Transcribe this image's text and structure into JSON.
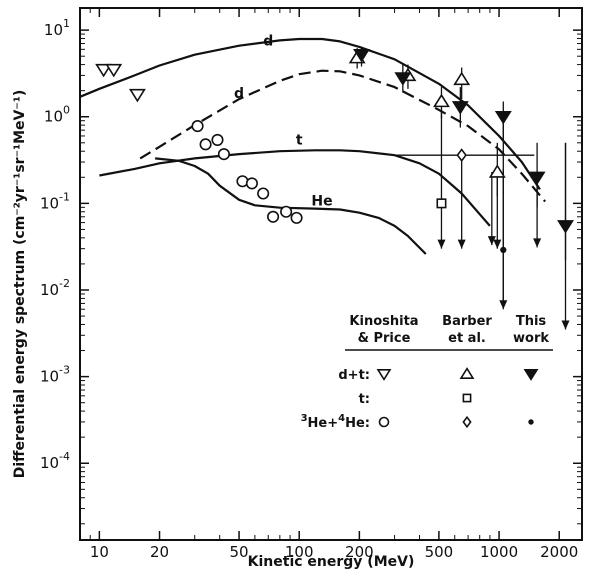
{
  "chart_data": {
    "type": "scatter",
    "title": "",
    "xlabel": "Kinetic energy (MeV)",
    "ylabel": "Differential energy spectrum (cm⁻²yr⁻¹sr⁻¹MeV⁻¹)",
    "xscale": "log",
    "yscale": "log",
    "xlim": [
      8,
      2600
    ],
    "ylim": [
      1.3e-05,
      18
    ],
    "x_ticks": [
      {
        "value": 10,
        "label": "10"
      },
      {
        "value": 20,
        "label": "20"
      },
      {
        "value": 50,
        "label": "50"
      },
      {
        "value": 100,
        "label": "100"
      },
      {
        "value": 200,
        "label": "200"
      },
      {
        "value": 500,
        "label": "500"
      },
      {
        "value": 1000,
        "label": "1000"
      },
      {
        "value": 2000,
        "label": "2000"
      }
    ],
    "y_ticks": [
      {
        "value": 10,
        "base": "10",
        "exp": "1"
      },
      {
        "value": 1,
        "base": "10",
        "exp": "0"
      },
      {
        "value": 0.1,
        "base": "10",
        "exp": "-1"
      },
      {
        "value": 0.01,
        "base": "10",
        "exp": "-2"
      },
      {
        "value": 0.001,
        "base": "10",
        "exp": "-3"
      },
      {
        "value": 0.0001,
        "base": "10",
        "exp": "-4"
      }
    ],
    "curves": [
      {
        "label": "d",
        "style": "solid",
        "label_at": [
          70,
          6.6
        ],
        "points": [
          [
            8,
            1.7
          ],
          [
            10,
            2.1
          ],
          [
            15,
            3.0
          ],
          [
            20,
            3.9
          ],
          [
            30,
            5.2
          ],
          [
            50,
            6.6
          ],
          [
            80,
            7.6
          ],
          [
            100,
            7.9
          ],
          [
            130,
            7.9
          ],
          [
            160,
            7.4
          ],
          [
            200,
            6.4
          ],
          [
            300,
            4.6
          ],
          [
            500,
            2.4
          ],
          [
            700,
            1.35
          ],
          [
            1000,
            0.6
          ],
          [
            1300,
            0.3
          ],
          [
            1600,
            0.145
          ]
        ]
      },
      {
        "label": "d",
        "style": "dashed",
        "label_at": [
          50,
          1.65
        ],
        "points": [
          [
            16,
            0.33
          ],
          [
            20,
            0.45
          ],
          [
            30,
            0.8
          ],
          [
            50,
            1.6
          ],
          [
            80,
            2.6
          ],
          [
            100,
            3.1
          ],
          [
            130,
            3.4
          ],
          [
            160,
            3.35
          ],
          [
            200,
            3.0
          ],
          [
            300,
            2.2
          ],
          [
            500,
            1.2
          ],
          [
            700,
            0.78
          ],
          [
            1000,
            0.42
          ],
          [
            1300,
            0.22
          ],
          [
            1700,
            0.105
          ]
        ]
      },
      {
        "label": "t",
        "style": "solid",
        "label_at": [
          100,
          0.48
        ],
        "points": [
          [
            10,
            0.21
          ],
          [
            15,
            0.25
          ],
          [
            20,
            0.29
          ],
          [
            30,
            0.33
          ],
          [
            50,
            0.37
          ],
          [
            80,
            0.4
          ],
          [
            120,
            0.41
          ],
          [
            160,
            0.41
          ],
          [
            200,
            0.4
          ],
          [
            300,
            0.36
          ],
          [
            400,
            0.29
          ],
          [
            500,
            0.22
          ],
          [
            650,
            0.13
          ],
          [
            800,
            0.075
          ],
          [
            900,
            0.055
          ]
        ]
      },
      {
        "label": "He",
        "style": "solid",
        "label_at": [
          130,
          0.095
        ],
        "points": [
          [
            19,
            0.33
          ],
          [
            25,
            0.31
          ],
          [
            30,
            0.27
          ],
          [
            35,
            0.22
          ],
          [
            40,
            0.16
          ],
          [
            50,
            0.11
          ],
          [
            60,
            0.095
          ],
          [
            80,
            0.089
          ],
          [
            120,
            0.087
          ],
          [
            160,
            0.085
          ],
          [
            200,
            0.078
          ],
          [
            250,
            0.068
          ],
          [
            300,
            0.055
          ],
          [
            350,
            0.042
          ],
          [
            430,
            0.026
          ]
        ]
      }
    ],
    "series": [
      {
        "group": "d+t",
        "source": "Kinoshita & Price",
        "marker": "triangle-down-open",
        "points": [
          {
            "x": 10.5,
            "y": 3.5
          },
          {
            "x": 11.8,
            "y": 3.5
          },
          {
            "x": 15.5,
            "y": 1.8
          }
        ]
      },
      {
        "group": "d+t",
        "source": "Barber et al.",
        "marker": "triangle-up-open",
        "points": [
          {
            "x": 195,
            "y": 4.8,
            "yerr": [
              3.6,
              6.2
            ]
          },
          {
            "x": 350,
            "y": 3.0,
            "yerr": [
              2.1,
              4.0
            ]
          },
          {
            "x": 515,
            "y": 1.5,
            "yerr": [
              0.95,
              2.2
            ]
          },
          {
            "x": 650,
            "y": 2.7,
            "yerr": [
              1.6,
              3.7
            ]
          },
          {
            "x": 980,
            "y": 0.23,
            "yerr": [
              0.12,
              0.5
            ]
          }
        ]
      },
      {
        "group": "d+t",
        "source": "This work",
        "marker": "triangle-down-filled",
        "points": [
          {
            "x": 205,
            "y": 5.2,
            "yerr": [
              3.8,
              6.4
            ]
          },
          {
            "x": 330,
            "y": 2.8,
            "yerr": [
              1.9,
              4.0
            ]
          },
          {
            "x": 640,
            "y": 1.3,
            "yerr": [
              0.75,
              2.2
            ]
          },
          {
            "x": 1050,
            "y": 1.0,
            "yerr": [
              0.55,
              1.5
            ]
          },
          {
            "x": 1550,
            "y": 0.2,
            "yerr": [
              0.09,
              0.5
            ]
          },
          {
            "x": 2150,
            "y": 0.055,
            "yerr": [
              0.022,
              0.5
            ]
          }
        ]
      },
      {
        "group": "t",
        "source": "Barber et al.",
        "marker": "square-open",
        "points": [
          {
            "x": 515,
            "y": 0.1
          }
        ]
      },
      {
        "group": "3He+4He",
        "source": "Kinoshita & Price",
        "marker": "circle-open",
        "points": [
          {
            "x": 31,
            "y": 0.78
          },
          {
            "x": 34,
            "y": 0.48
          },
          {
            "x": 39,
            "y": 0.54
          },
          {
            "x": 42,
            "y": 0.37
          },
          {
            "x": 52,
            "y": 0.18
          },
          {
            "x": 58,
            "y": 0.17
          },
          {
            "x": 66,
            "y": 0.13
          },
          {
            "x": 74,
            "y": 0.07
          },
          {
            "x": 86,
            "y": 0.08
          },
          {
            "x": 97,
            "y": 0.068
          }
        ]
      },
      {
        "group": "3He+4He",
        "source": "Barber et al.",
        "marker": "diamond-open",
        "points": [
          {
            "x": 650,
            "y": 0.36
          }
        ]
      },
      {
        "group": "3He+4He",
        "source": "This work",
        "marker": "circle-filled",
        "points": [
          {
            "x": 1050,
            "y": 0.029
          }
        ]
      }
    ],
    "limits": [
      {
        "x": 515,
        "from": 1.2,
        "to": 0.03,
        "arrow": true
      },
      {
        "x": 920,
        "from": 0.23,
        "to": 0.033,
        "arrow": true
      },
      {
        "x": 980,
        "from": 0.23,
        "to": 0.03,
        "arrow": true
      },
      {
        "x": 1050,
        "from": 1.0,
        "to": 0.006,
        "arrow": true
      },
      {
        "x": 1550,
        "from": 0.2,
        "to": 0.031,
        "arrow": true
      },
      {
        "x": 2150,
        "from": 0.5,
        "to": 0.0035,
        "arrow": true
      },
      {
        "x": 650,
        "from": 0.36,
        "to": 0.03,
        "arrow": true
      },
      {
        "x": 1050,
        "from": 0.25,
        "to": 0.0065,
        "arrow": false
      }
    ],
    "hlines": [
      {
        "y": 0.36,
        "x_from": 300,
        "x_to": 1500
      }
    ],
    "legend": {
      "placement": "bottom-right",
      "columns": [
        "Kinoshita\n& Price",
        "Barber\net al.",
        "This\nwork"
      ],
      "rows": [
        {
          "label": "d+t:",
          "markers": [
            "triangle-down-open",
            "triangle-up-open",
            "triangle-down-filled"
          ]
        },
        {
          "label": "t:",
          "markers": [
            "",
            "square-open",
            ""
          ]
        },
        {
          "label": "He:",
          "label_prefix_sup": "3",
          "label_mid_sup": "4",
          "markers": [
            "circle-open",
            "diamond-open",
            "circle-filled"
          ]
        }
      ]
    }
  }
}
